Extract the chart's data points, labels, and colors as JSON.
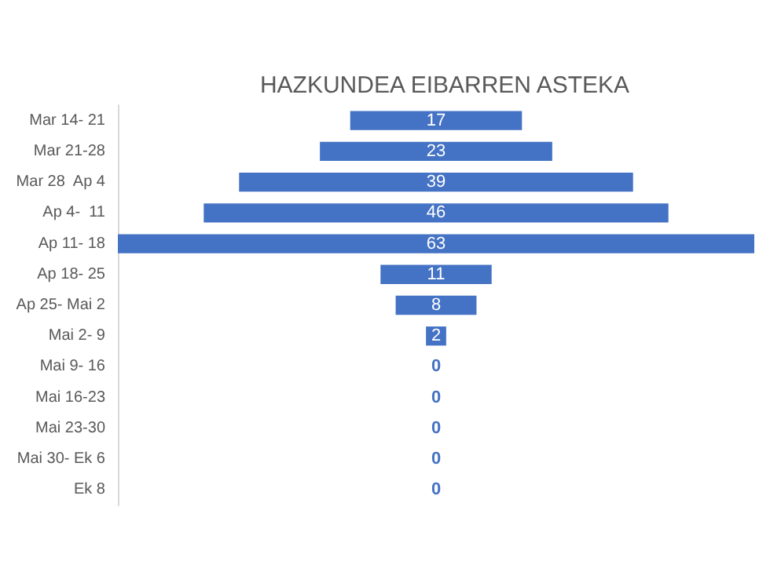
{
  "chart_data": {
    "type": "other",
    "title": "HAZKUNDEA EIBARREN ASTEKA",
    "categories": [
      "Mar 14- 21",
      "Mar 21-28",
      "Mar 28  Ap 4",
      "Ap 4-  11",
      "Ap 11- 18",
      "Ap 18- 25",
      "Ap 25- Mai 2",
      "Mai 2- 9",
      "Mai 9- 16",
      "Mai 16-23",
      "Mai 23-30",
      "Mai 30- Ek 6",
      "Ek 8"
    ],
    "values": [
      17,
      23,
      39,
      46,
      63,
      11,
      8,
      2,
      0,
      0,
      0,
      0,
      0
    ],
    "color": "#4472c4",
    "data_labels": true
  }
}
